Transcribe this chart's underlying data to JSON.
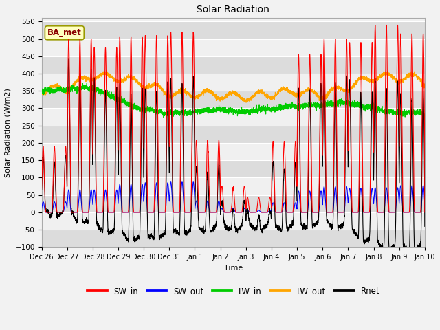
{
  "title": "Solar Radiation",
  "xlabel": "Time",
  "ylabel": "Solar Radiation (W/m2)",
  "ylim": [
    -100,
    560
  ],
  "yticks": [
    -100,
    -50,
    0,
    50,
    100,
    150,
    200,
    250,
    300,
    350,
    400,
    450,
    500,
    550
  ],
  "annotation": "BA_met",
  "annotation_color": "#8B0000",
  "annotation_bg": "#FFFFC0",
  "annotation_edge": "#999900",
  "fig_bg": "#F2F2F2",
  "plot_bg_light": "#F0F0F0",
  "plot_bg_dark": "#DCDCDC",
  "series_colors": {
    "SW_in": "#FF0000",
    "SW_out": "#0000FF",
    "LW_in": "#00CC00",
    "LW_out": "#FFA500",
    "Rnet": "#000000"
  },
  "n_days": 15,
  "pts_per_day": 288,
  "day_labels": [
    "Dec 26",
    "Dec 27",
    "Dec 28",
    "Dec 29",
    "Dec 30",
    "Dec 31",
    "Jan 1",
    "Jan 2",
    "Jan 3",
    "Jan 4",
    "Jan 5",
    "Jan 6",
    "Jan 7",
    "Jan 8",
    "Jan 9",
    "Jan 10"
  ],
  "SW_in_peaks": [
    190,
    500,
    475,
    505,
    510,
    520,
    520,
    190,
    110,
    205,
    455,
    500,
    490,
    540,
    515
  ],
  "SW_in_cloudy": [
    6,
    7,
    8
  ],
  "LW_in_base": [
    350,
    355,
    360,
    325,
    295,
    285,
    290,
    295,
    290,
    300,
    305,
    310,
    315,
    300,
    285
  ],
  "LW_out_base": [
    352,
    358,
    395,
    388,
    372,
    342,
    342,
    338,
    332,
    342,
    348,
    338,
    362,
    392,
    388
  ]
}
